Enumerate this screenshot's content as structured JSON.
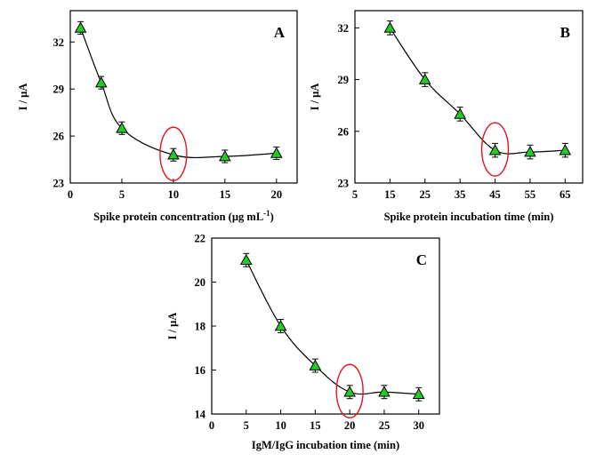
{
  "chart_data": [
    {
      "type": "line",
      "panel_label": "A",
      "xlabel": "Spike protein concentration (µg mL",
      "xlabel_sup": "-1",
      "xlabel_end": ")",
      "ylabel": "I / µA",
      "xlim": [
        0,
        22
      ],
      "ylim": [
        23,
        34
      ],
      "xticks": [
        0,
        5,
        10,
        15,
        20
      ],
      "yticks": [
        23,
        26,
        29,
        32
      ],
      "x": [
        1,
        3,
        5,
        10,
        15,
        20
      ],
      "y": [
        32.9,
        29.4,
        26.5,
        24.8,
        24.7,
        24.9
      ],
      "error": [
        0.4,
        0.4,
        0.4,
        0.4,
        0.4,
        0.4
      ],
      "highlight_x": 10,
      "marker_color": "#22cc22",
      "highlight_color": "#e0141e"
    },
    {
      "type": "line",
      "panel_label": "B",
      "xlabel": "Spike protein incubation time (min)",
      "ylabel": "I / µA",
      "xlim": [
        5,
        70
      ],
      "ylim": [
        23,
        33
      ],
      "xticks": [
        5,
        15,
        25,
        35,
        45,
        55,
        65
      ],
      "yticks": [
        23,
        26,
        29,
        32
      ],
      "x": [
        15,
        25,
        35,
        45,
        55,
        65
      ],
      "y": [
        32.0,
        29.0,
        27.0,
        24.9,
        24.8,
        24.9
      ],
      "error": [
        0.4,
        0.4,
        0.4,
        0.4,
        0.4,
        0.4
      ],
      "highlight_x": 45,
      "marker_color": "#22cc22",
      "highlight_color": "#e0141e"
    },
    {
      "type": "line",
      "panel_label": "C",
      "xlabel": "IgM/IgG incubation time (min)",
      "ylabel": "I / µA",
      "xlim": [
        0,
        33
      ],
      "ylim": [
        14,
        22
      ],
      "xticks": [
        0,
        5,
        10,
        15,
        20,
        25,
        30
      ],
      "yticks": [
        14,
        16,
        18,
        20,
        22
      ],
      "x": [
        5,
        10,
        15,
        20,
        25,
        30
      ],
      "y": [
        21.0,
        18.0,
        16.2,
        15.0,
        15.0,
        14.9
      ],
      "error": [
        0.3,
        0.3,
        0.3,
        0.3,
        0.3,
        0.3
      ],
      "highlight_x": 20,
      "marker_color": "#22cc22",
      "highlight_color": "#e0141e"
    }
  ]
}
